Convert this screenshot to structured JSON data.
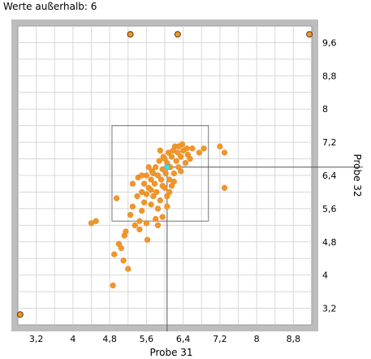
{
  "status": {
    "text": "Werte außerhalb: 6"
  },
  "colors": {
    "point": "#f0962a",
    "point_stroke": "#e0851c",
    "selected_point": "#52d6d6",
    "grid": "#d8d8d8",
    "frame": "#bdbdbd",
    "region": "#777777"
  },
  "chart_data": {
    "type": "scatter",
    "title": "",
    "xlabel": "Probe 31",
    "ylabel": "Probe 32",
    "xlim": [
      2.8,
      9.2
    ],
    "ylim": [
      2.8,
      10.0
    ],
    "x_ticks": [
      "3,2",
      "4",
      "4,8",
      "5,6",
      "6,4",
      "7,2",
      "8",
      "8,8"
    ],
    "x_tick_values": [
      3.2,
      4.0,
      4.8,
      5.6,
      6.4,
      7.2,
      8.0,
      8.8
    ],
    "y_ticks": [
      "3,2",
      "4",
      "4,8",
      "5,6",
      "6,4",
      "7,2",
      "8",
      "8,8",
      "9,6"
    ],
    "y_tick_values": [
      3.2,
      4.0,
      4.8,
      5.6,
      6.4,
      7.2,
      8.0,
      8.8,
      9.6
    ],
    "grid": true,
    "region": {
      "x_min": 4.85,
      "x_max": 6.95,
      "y_min": 5.3,
      "y_max": 7.6
    },
    "selected": {
      "x": 6.05,
      "y": 6.6
    },
    "outliers": [
      {
        "x": 5.25,
        "y": 9.8
      },
      {
        "x": 6.28,
        "y": 9.8
      },
      {
        "x": 9.15,
        "y": 9.8
      },
      {
        "x": 2.85,
        "y": 3.05
      }
    ],
    "points": [
      [
        4.4,
        5.25
      ],
      [
        4.5,
        5.3
      ],
      [
        4.87,
        3.75
      ],
      [
        4.9,
        4.5
      ],
      [
        4.95,
        5.85
      ],
      [
        5.0,
        4.75
      ],
      [
        5.05,
        4.65
      ],
      [
        5.1,
        4.35
      ],
      [
        5.12,
        4.95
      ],
      [
        5.15,
        5.05
      ],
      [
        5.2,
        4.15
      ],
      [
        5.25,
        5.45
      ],
      [
        5.3,
        5.65
      ],
      [
        5.3,
        6.2
      ],
      [
        5.35,
        5.2
      ],
      [
        5.4,
        5.9
      ],
      [
        5.42,
        6.35
      ],
      [
        5.45,
        5.3
      ],
      [
        5.5,
        6.0
      ],
      [
        5.5,
        5.55
      ],
      [
        5.55,
        6.2
      ],
      [
        5.55,
        5.75
      ],
      [
        5.6,
        6.4
      ],
      [
        5.6,
        5.95
      ],
      [
        5.62,
        4.85
      ],
      [
        5.65,
        6.1
      ],
      [
        5.7,
        6.3
      ],
      [
        5.7,
        5.7
      ],
      [
        5.72,
        6.5
      ],
      [
        5.75,
        5.9
      ],
      [
        5.78,
        6.2
      ],
      [
        5.8,
        6.6
      ],
      [
        5.82,
        6.0
      ],
      [
        5.85,
        6.4
      ],
      [
        5.88,
        6.75
      ],
      [
        5.9,
        5.8
      ],
      [
        5.92,
        6.3
      ],
      [
        5.95,
        6.55
      ],
      [
        5.97,
        6.85
      ],
      [
        6.0,
        6.1
      ],
      [
        6.02,
        6.45
      ],
      [
        6.05,
        6.7
      ],
      [
        6.08,
        6.95
      ],
      [
        6.1,
        6.3
      ],
      [
        6.12,
        6.6
      ],
      [
        6.15,
        6.85
      ],
      [
        6.18,
        7.0
      ],
      [
        6.2,
        6.45
      ],
      [
        6.25,
        6.75
      ],
      [
        6.28,
        6.95
      ],
      [
        6.3,
        6.6
      ],
      [
        6.35,
        6.85
      ],
      [
        6.4,
        7.0
      ],
      [
        6.45,
        6.7
      ],
      [
        6.5,
        6.9
      ],
      [
        6.55,
        6.8
      ],
      [
        6.6,
        7.05
      ],
      [
        6.75,
        6.95
      ],
      [
        6.85,
        7.05
      ],
      [
        7.2,
        7.1
      ],
      [
        7.3,
        6.95
      ],
      [
        7.3,
        6.1
      ],
      [
        5.95,
        5.4
      ],
      [
        6.05,
        5.65
      ],
      [
        5.85,
        5.2
      ],
      [
        5.75,
        6.45
      ],
      [
        6.1,
        6.0
      ],
      [
        5.65,
        6.6
      ],
      [
        5.9,
        7.0
      ],
      [
        6.0,
        6.8
      ],
      [
        6.2,
        6.25
      ],
      [
        6.35,
        6.5
      ],
      [
        5.5,
        6.4
      ],
      [
        5.45,
        5.1
      ],
      [
        6.22,
        7.1
      ],
      [
        6.38,
        7.15
      ],
      [
        6.48,
        7.05
      ],
      [
        5.8,
        5.35
      ],
      [
        5.6,
        5.25
      ],
      [
        6.05,
        5.9
      ],
      [
        5.7,
        6.05
      ],
      [
        6.15,
        6.15
      ],
      [
        5.95,
        6.15
      ],
      [
        5.85,
        5.6
      ],
      [
        6.3,
        7.1
      ]
    ]
  }
}
